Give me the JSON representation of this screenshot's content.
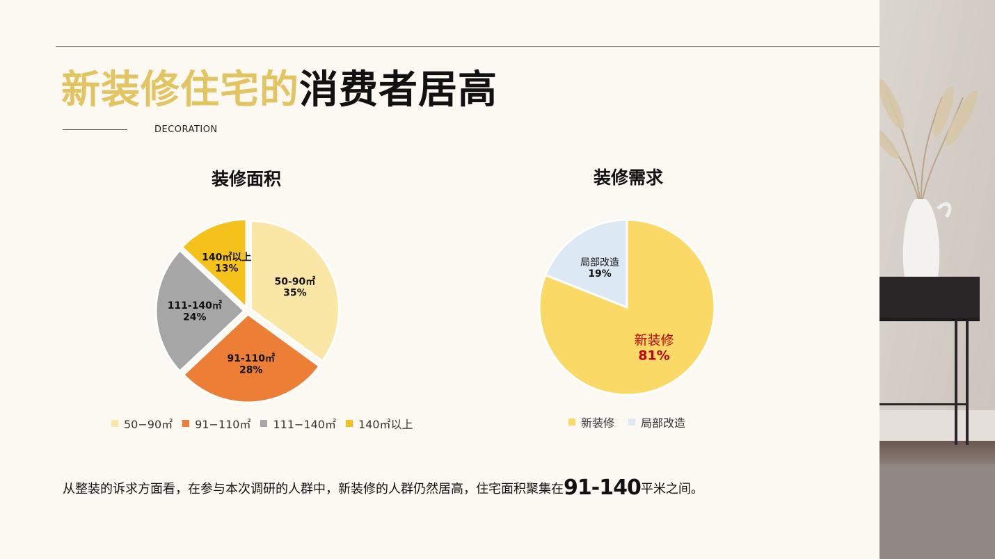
{
  "title": {
    "highlight": "新装修住宅的",
    "rest": "消费者居高"
  },
  "subtitle": "DECORATION",
  "caption": {
    "before": "从整装的诉求方面看，在参与本次调研的人群中，新装修的人群仍然居高，住宅面积聚集在",
    "emphasis": "91-140",
    "after": "平米之间。"
  },
  "chart_data": [
    {
      "type": "pie",
      "title": "装修面积",
      "slices": [
        {
          "name": "50-90㎡",
          "legend": "50−90㎡",
          "value": 35,
          "label": "35%",
          "color": "#fbe7a5"
        },
        {
          "name": "91-110㎡",
          "legend": "91−110㎡",
          "value": 28,
          "label": "28%",
          "color": "#ec7f35"
        },
        {
          "name": "111-140㎡",
          "legend": "111−140㎡",
          "value": 24,
          "label": "24%",
          "color": "#a6a6a6"
        },
        {
          "name": "140㎡以上",
          "legend": "140㎡以上",
          "value": 13,
          "label": "13%",
          "color": "#f5c21c"
        }
      ],
      "legend_position": "bottom"
    },
    {
      "type": "pie",
      "title": "装修需求",
      "slices": [
        {
          "name": "新装修",
          "legend": "新装修",
          "value": 81,
          "label": "81%",
          "color": "#fbd966"
        },
        {
          "name": "局部改造",
          "legend": "局部改造",
          "value": 19,
          "label": "19%",
          "color": "#dde8f5"
        }
      ],
      "legend_position": "bottom"
    }
  ]
}
